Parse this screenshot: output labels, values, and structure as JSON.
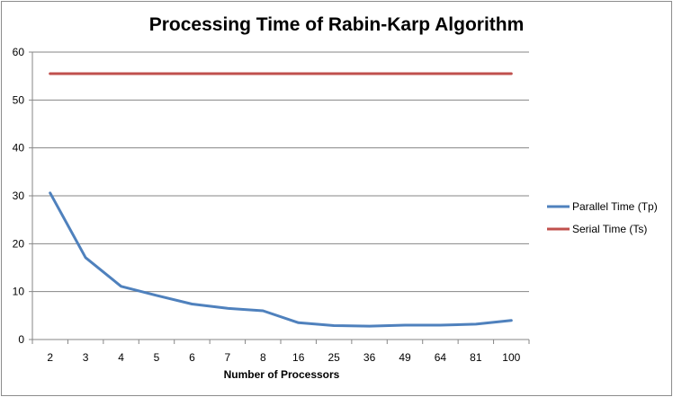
{
  "chart_data": {
    "type": "line",
    "title": "Processing Time of Rabin-Karp Algorithm",
    "xlabel": "Number of Processors",
    "ylabel": "",
    "categories": [
      "2",
      "3",
      "4",
      "5",
      "6",
      "7",
      "8",
      "16",
      "25",
      "36",
      "49",
      "64",
      "81",
      "100"
    ],
    "ylim": [
      0,
      60
    ],
    "yticks": [
      0,
      10,
      20,
      30,
      40,
      50,
      60
    ],
    "grid": true,
    "legend_position": "right",
    "series": [
      {
        "name": "Parallel Time  (Tp)",
        "color": "#4f81bd",
        "values": [
          30.6,
          17.1,
          11.1,
          9.2,
          7.4,
          6.5,
          6.0,
          3.5,
          2.9,
          2.8,
          3.0,
          3.0,
          3.2,
          4.0
        ]
      },
      {
        "name": "Serial Time  (Ts)",
        "color": "#c0504d",
        "values": [
          55.5,
          55.5,
          55.5,
          55.5,
          55.5,
          55.5,
          55.5,
          55.5,
          55.5,
          55.5,
          55.5,
          55.5,
          55.5,
          55.5
        ]
      }
    ]
  }
}
